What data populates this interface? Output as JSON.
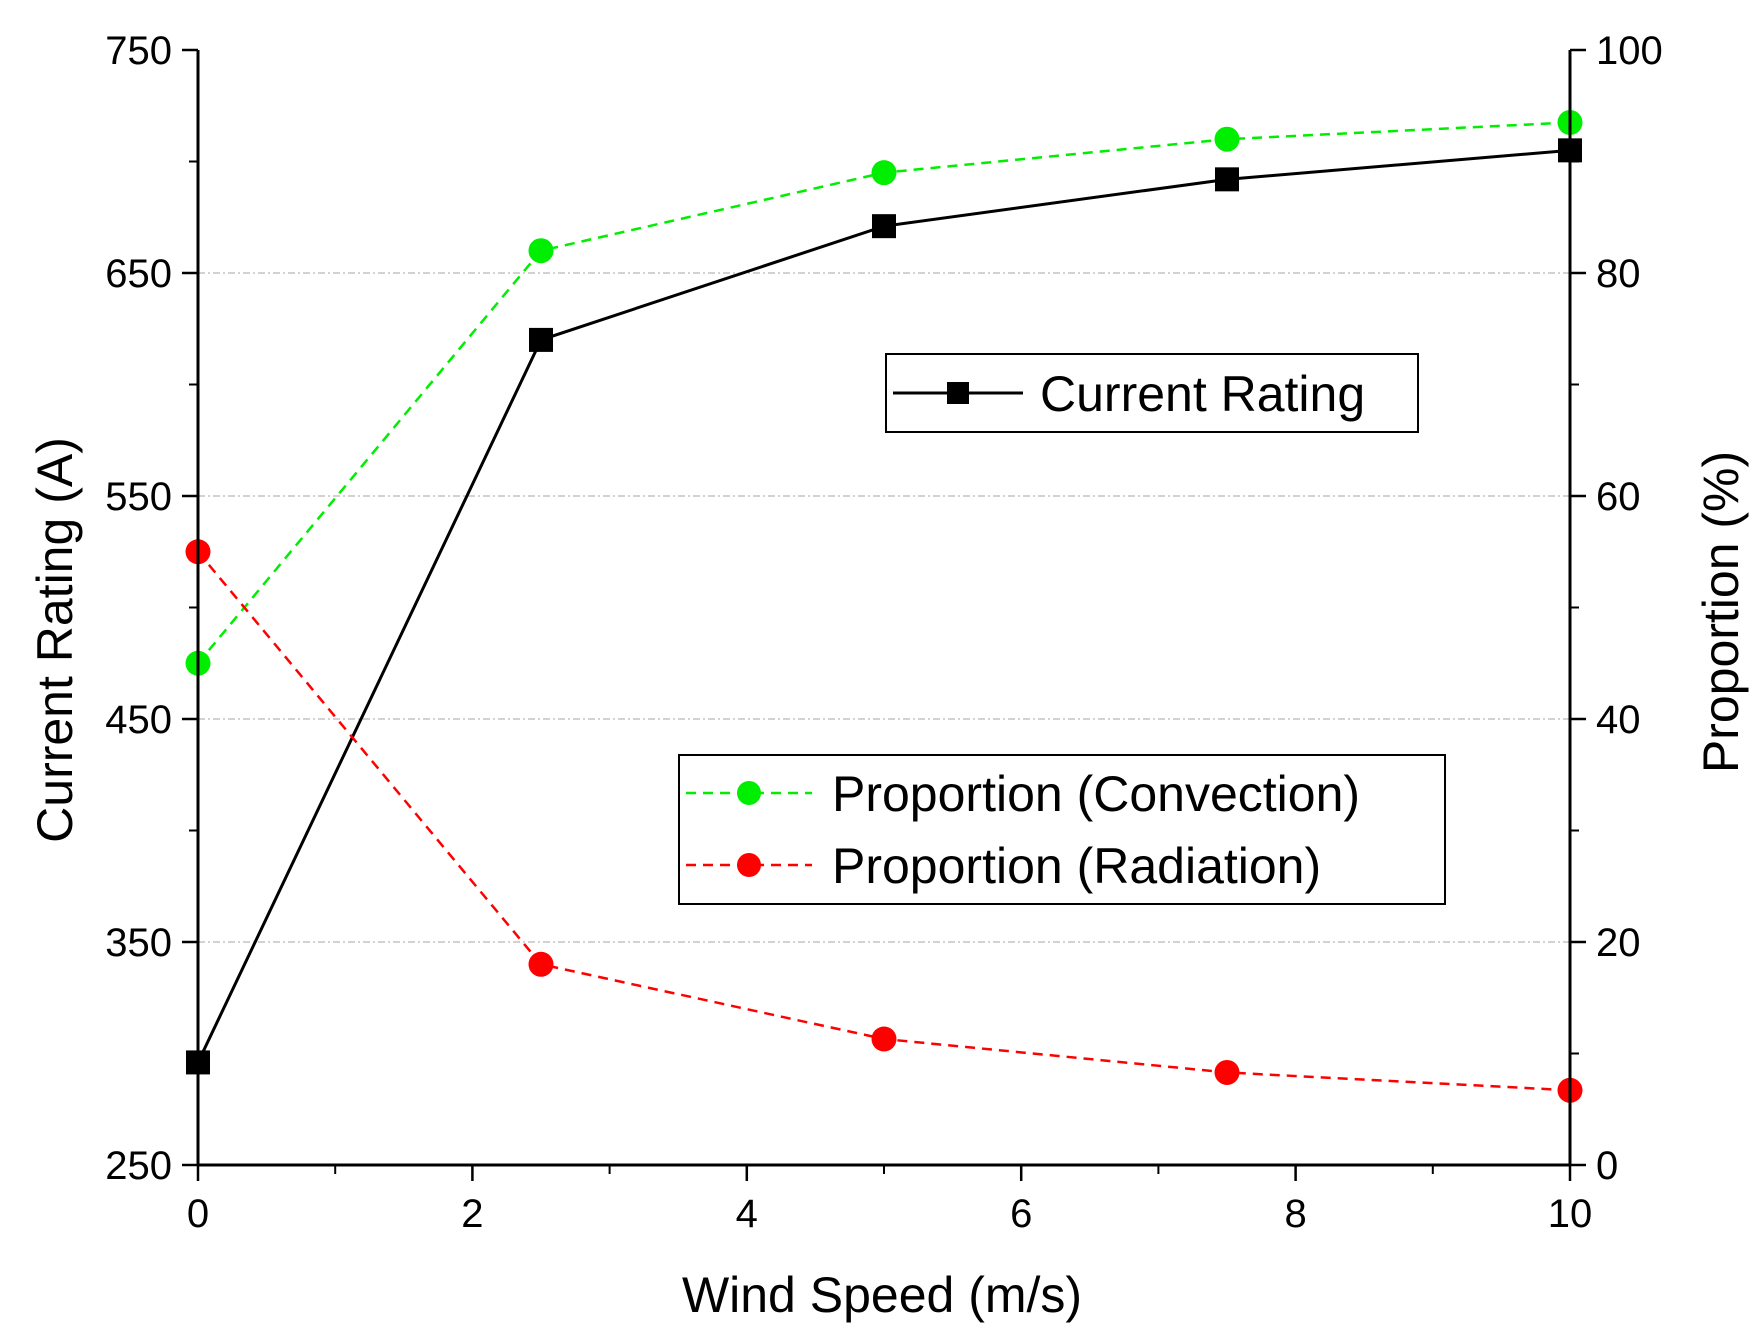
{
  "chart_data": {
    "type": "line",
    "x": [
      0,
      2.5,
      5,
      7.5,
      10
    ],
    "xlabel": "Wind Speed (m/s)",
    "ylabel": "Current Rating (A)",
    "y2label": "Proportion (%)",
    "xlim": [
      0,
      10
    ],
    "ylim": [
      250,
      750
    ],
    "y2lim": [
      0,
      100
    ],
    "xticks": [
      0,
      2,
      4,
      6,
      8,
      10
    ],
    "xtick_labels": [
      "0",
      "2",
      "4",
      "6",
      "8",
      "10"
    ],
    "yticks": [
      250,
      350,
      450,
      550,
      650,
      750
    ],
    "ytick_labels": [
      "250",
      "350",
      "450",
      "550",
      "650",
      "750"
    ],
    "y2ticks": [
      0,
      20,
      40,
      60,
      80,
      100
    ],
    "y2tick_labels": [
      "0",
      "20",
      "40",
      "60",
      "80",
      "100"
    ],
    "grid": "horizontal dash-dot at major left ticks",
    "series": [
      {
        "name": "Current Rating",
        "axis": "left",
        "color": "#000000",
        "line": "solid",
        "marker": "square",
        "values": [
          296,
          620,
          671,
          692,
          705
        ]
      },
      {
        "name": "Proportion (Convection)",
        "axis": "right",
        "color": "#00ee00",
        "line": "dashed",
        "marker": "circle",
        "values": [
          45,
          82,
          89,
          92,
          93.5
        ]
      },
      {
        "name": "Proportion (Radiation)",
        "axis": "right",
        "color": "#ff0000",
        "line": "dashed",
        "marker": "circle",
        "values": [
          55,
          18,
          11.3,
          8.3,
          6.7
        ]
      }
    ],
    "legends": [
      {
        "placement": "upper-middle",
        "entries": [
          "Current Rating"
        ]
      },
      {
        "placement": "middle-right",
        "entries": [
          "Proportion (Convection)",
          "Proportion (Radiation)"
        ]
      }
    ]
  }
}
